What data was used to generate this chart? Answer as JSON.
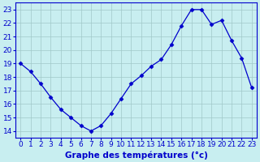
{
  "hours": [
    0,
    1,
    2,
    3,
    4,
    5,
    6,
    7,
    8,
    9,
    10,
    11,
    12,
    13,
    14,
    15,
    16,
    17,
    18,
    19,
    20,
    21,
    22,
    23
  ],
  "temps": [
    19.0,
    18.4,
    17.5,
    16.5,
    15.6,
    15.0,
    14.4,
    14.0,
    14.4,
    15.3,
    16.4,
    17.5,
    18.1,
    18.8,
    19.3,
    20.4,
    21.8,
    23.0,
    23.0,
    21.9,
    22.2,
    20.7,
    19.4,
    17.2
  ],
  "line_color": "#0000cc",
  "marker": "D",
  "marker_size": 2.5,
  "bg_color": "#c8eef0",
  "grid_color": "#a0c8c8",
  "xlabel": "Graphe des températures (°c)",
  "ylim": [
    13.5,
    23.5
  ],
  "xlim": [
    -0.5,
    23.5
  ],
  "yticks": [
    14,
    15,
    16,
    17,
    18,
    19,
    20,
    21,
    22,
    23
  ],
  "xticks": [
    0,
    1,
    2,
    3,
    4,
    5,
    6,
    7,
    8,
    9,
    10,
    11,
    12,
    13,
    14,
    15,
    16,
    17,
    18,
    19,
    20,
    21,
    22,
    23
  ],
  "tick_color": "#0000cc",
  "spine_color": "#0000cc",
  "label_fontsize": 6.5,
  "xlabel_fontsize": 7.5
}
